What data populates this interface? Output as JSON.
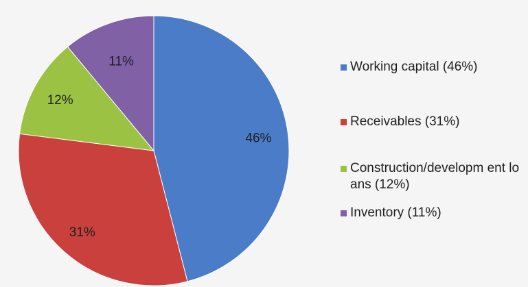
{
  "chart_data": {
    "type": "pie",
    "title": "",
    "categories": [
      "Working capital (46%)",
      "Receivables (31%)",
      "Construction/development loans (12%)",
      "Inventory (11%)"
    ],
    "values": [
      46,
      31,
      12,
      11
    ],
    "data_labels": [
      "46%",
      "31%",
      "12%",
      "11%"
    ],
    "colors": [
      "#4a7cc7",
      "#c9403d",
      "#9bc243",
      "#8161a6"
    ],
    "legend_position": "right",
    "legend": [
      {
        "text": "Working capital (46%)",
        "color": "#4a7cc7"
      },
      {
        "text": "Receivables (31%)",
        "color": "#c9403d"
      },
      {
        "text": "Construction/developm ent loans (12%)",
        "color": "#9bc243"
      },
      {
        "text": "Inventory (11%)",
        "color": "#8161a6"
      }
    ]
  }
}
